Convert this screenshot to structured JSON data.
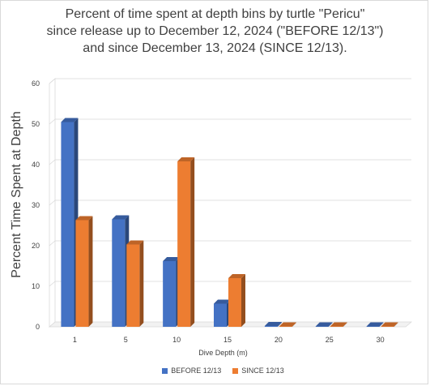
{
  "chart_data": {
    "type": "bar",
    "title_lines": [
      "Percent of time spent at depth bins by turtle \"Pericu\"",
      "since release up to December 12, 2024 (\"BEFORE 12/13\")",
      "and since December 13, 2024 (SINCE 12/13)."
    ],
    "xlabel": "Dive Depth (m)",
    "ylabel": "Percent Time Spent at Depth",
    "categories": [
      "1",
      "5",
      "10",
      "15",
      "20",
      "25",
      "30"
    ],
    "ylim": [
      0,
      60
    ],
    "yticks": [
      0,
      10,
      20,
      30,
      40,
      50,
      60
    ],
    "grid": true,
    "legend_position": "bottom",
    "series": [
      {
        "name": "BEFORE 12/13",
        "color": "#4472C4",
        "values": [
          50.5,
          26.5,
          16.2,
          5.7,
          0.2,
          0.1,
          0.1
        ]
      },
      {
        "name": "SINCE 12/13",
        "color": "#ED7D31",
        "values": [
          26.3,
          20.3,
          40.8,
          12.0,
          0.1,
          0.1,
          0.1
        ]
      }
    ]
  }
}
